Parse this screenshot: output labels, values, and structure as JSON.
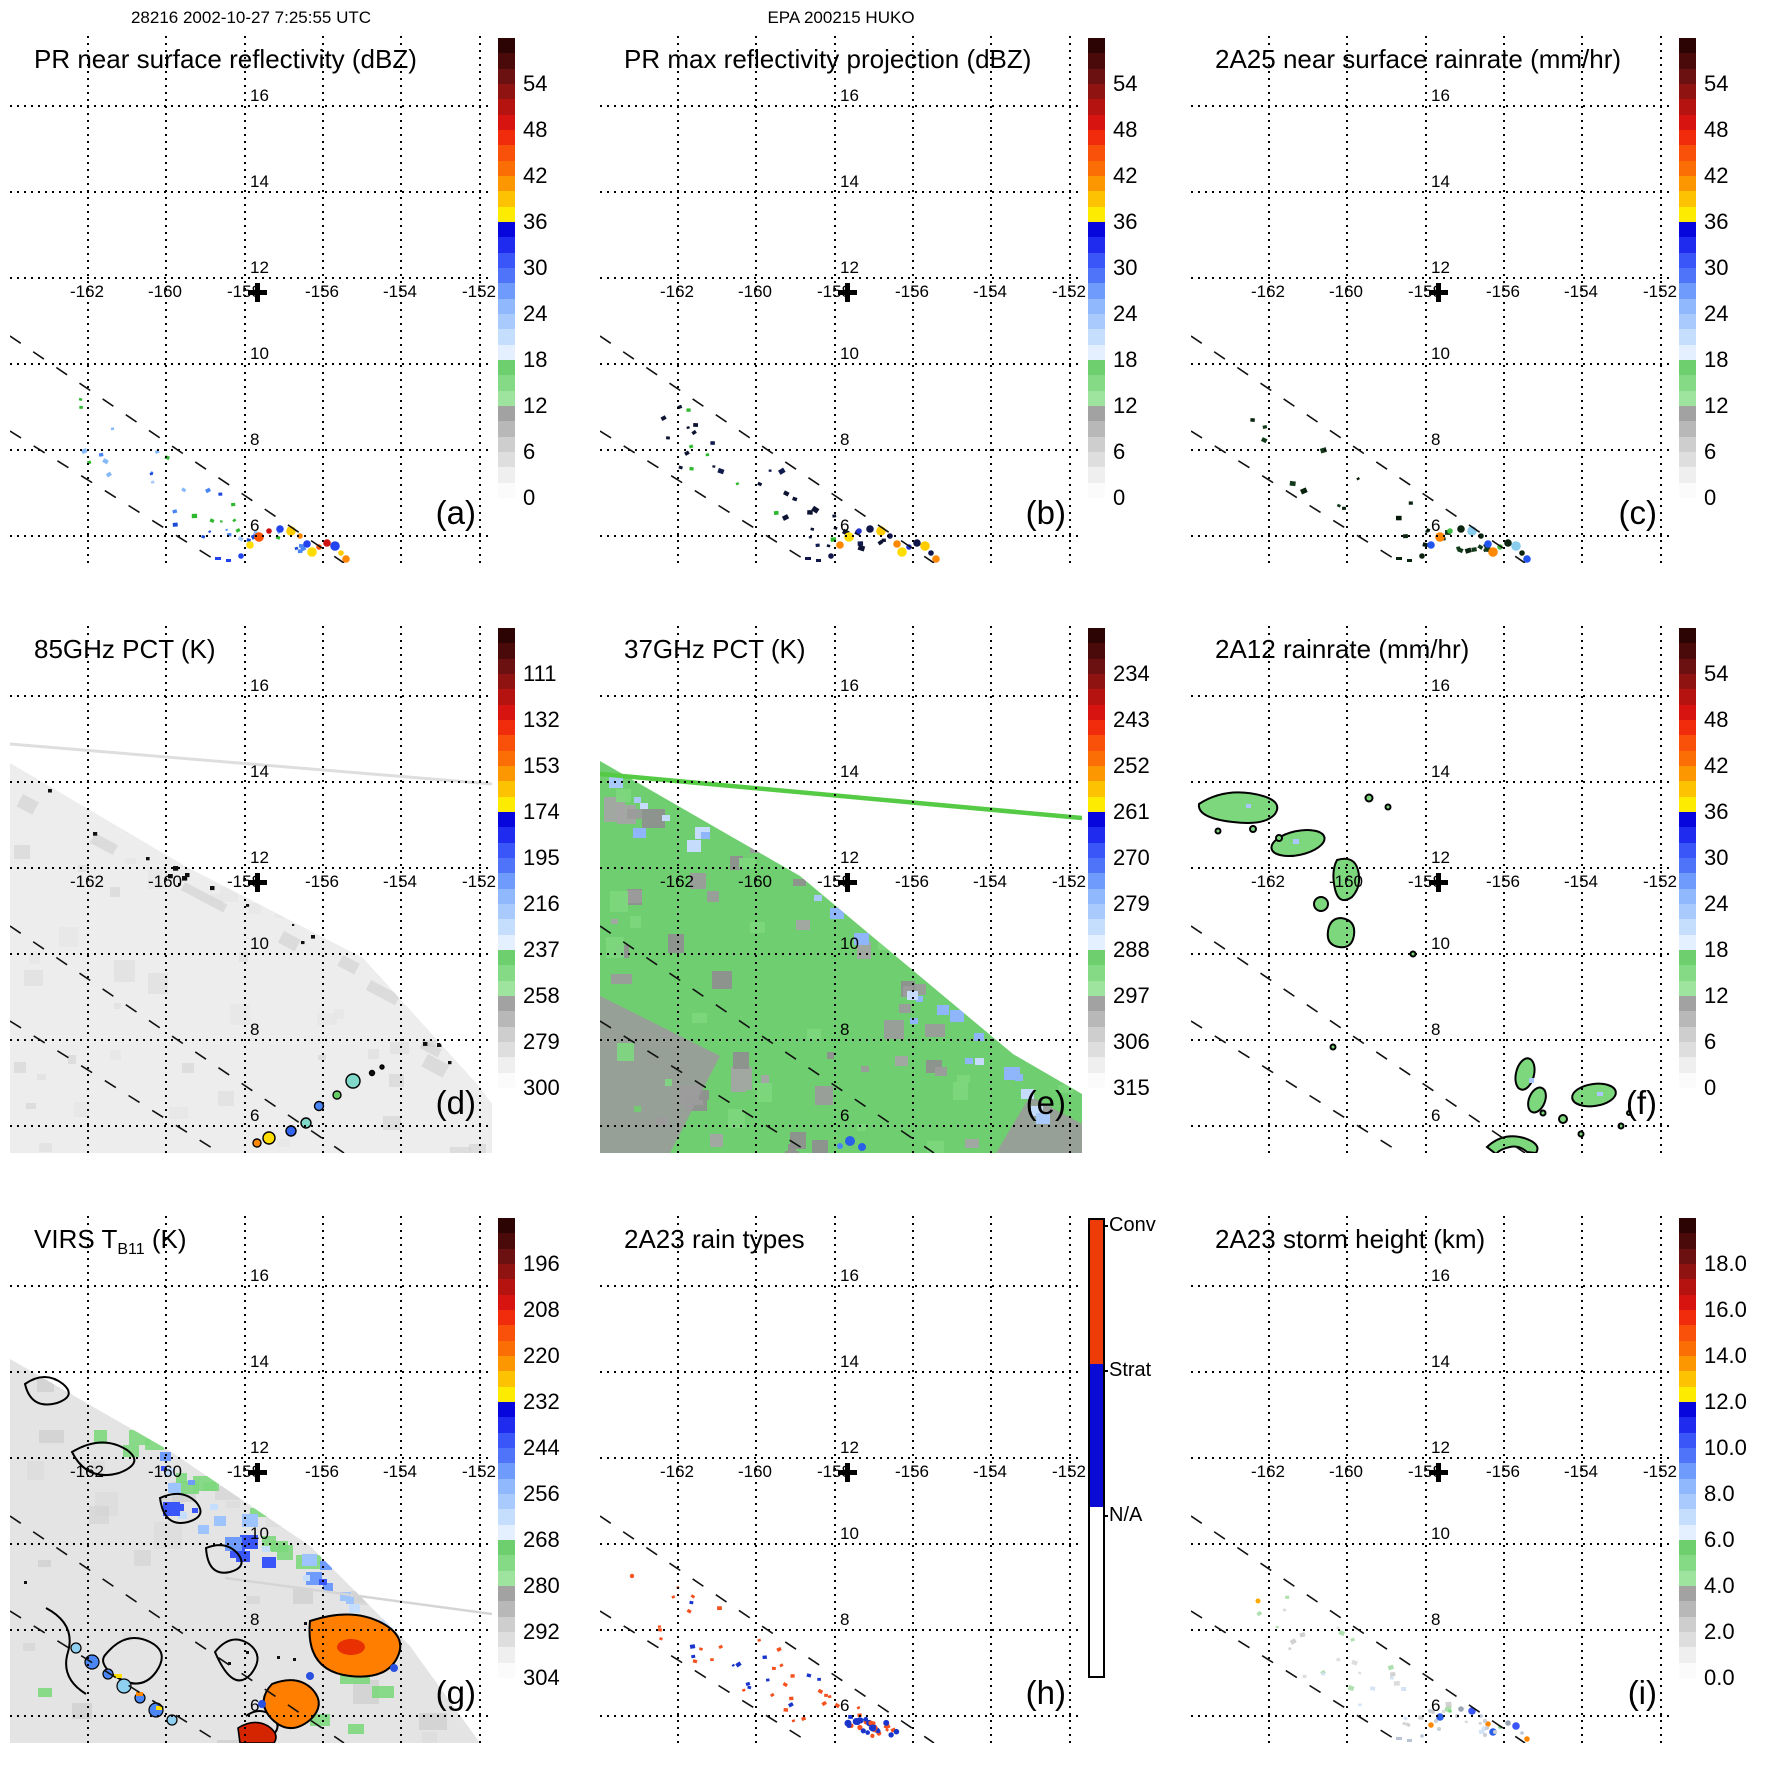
{
  "header": {
    "left": "28216 2002-10-27 7:25:55 UTC",
    "center": "EPA 200215 HUKO"
  },
  "map": {
    "lon_labels": [
      "-162",
      "-160",
      "-158",
      "-156",
      "-154",
      "-152"
    ],
    "lat_labels": [
      "16",
      "14",
      "12",
      "10",
      "8",
      "6"
    ]
  },
  "colorbar_scales": {
    "rainbow_segments": [
      [
        "#2d0404",
        "#4b0a0a",
        "#6b1111"
      ],
      [
        "#8f1310",
        "#b51310",
        "#d81410"
      ],
      [
        "#f02c0c",
        "#f9500a",
        "#fb6e06"
      ],
      [
        "#fc9702",
        "#fdc201",
        "#fdeb02"
      ],
      [
        "#0707dd",
        "#1f2bef",
        "#3a55f8"
      ],
      [
        "#4f74fa",
        "#6e9bfc",
        "#8fb8fd"
      ],
      [
        "#a8cafd",
        "#c6defe",
        "#e4f0ff"
      ],
      [
        "#6dcf6d",
        "#85da85",
        "#9ee49e"
      ],
      [
        "#a2a2a2",
        "#b8b8b8",
        "#cecece"
      ],
      [
        "#dedede",
        "#efefef",
        "#fbfbfb"
      ]
    ],
    "dbz": {
      "ticks": [
        "54",
        "48",
        "42",
        "36",
        "30",
        "24",
        "18",
        "12",
        "6",
        "0"
      ]
    },
    "pct85": {
      "ticks": [
        "111",
        "132",
        "153",
        "174",
        "195",
        "216",
        "237",
        "258",
        "279",
        "300"
      ]
    },
    "pct37": {
      "ticks": [
        "234",
        "243",
        "252",
        "261",
        "270",
        "279",
        "288",
        "297",
        "306",
        "315"
      ]
    },
    "virs": {
      "ticks": [
        "196",
        "208",
        "220",
        "232",
        "244",
        "256",
        "268",
        "280",
        "292",
        "304"
      ]
    },
    "storm": {
      "ticks": [
        "18.0",
        "16.0",
        "14.0",
        "12.0",
        "10.0",
        "8.0",
        "6.0",
        "4.0",
        "2.0",
        "0.0"
      ]
    },
    "raintype": {
      "labels": [
        "Conv",
        "Strat",
        "N/A"
      ],
      "colors": [
        "#ee3c09",
        "#0b0bd6",
        "#ffffff"
      ],
      "fractions": [
        0.315,
        0.315,
        0.37
      ]
    }
  },
  "panels": [
    {
      "id": "a",
      "corner": "(a)",
      "title": "PR near surface reflectivity (dBZ)",
      "scale": "dbz",
      "art": "specks",
      "specks": {
        "seed": 11,
        "n": 46,
        "colors": [
          "#4a86f5",
          "#86b9f8",
          "#2eb82e",
          "#1b49d8",
          "#a8cafd"
        ],
        "min": 2.2,
        "var": 3.2
      },
      "arc_colors": [
        "#2244ee",
        "#ffdd00",
        "#ff5500",
        "#cc1111",
        "#2244ee",
        "#ffcc00",
        "#ff8800"
      ]
    },
    {
      "id": "b",
      "corner": "(b)",
      "title": "PR max reflectivity projection (dBZ)",
      "scale": "dbz",
      "art": "specks",
      "specks": {
        "seed": 22,
        "n": 40,
        "colors": [
          "#0d1433",
          "#0d1433",
          "#101a4d",
          "#2eb82e"
        ],
        "min": 2.8,
        "var": 4.0
      },
      "arc_colors": [
        "#10154a",
        "#ff8800",
        "#ffdd00",
        "#2233cc",
        "#10154a",
        "#ffcc00"
      ]
    },
    {
      "id": "c",
      "corner": "(c)",
      "title": "2A25 near surface rainrate (mm/hr)",
      "scale": "dbz",
      "art": "specks",
      "specks": {
        "seed": 33,
        "n": 34,
        "colors": [
          "#0a2410",
          "#061a0a",
          "#123a1a"
        ],
        "min": 2.6,
        "var": 3.6
      },
      "arc_colors": [
        "#0a2410",
        "#2255ee",
        "#ff8800",
        "#44bb44",
        "#0a2410",
        "#88ccee"
      ]
    },
    {
      "id": "d",
      "corner": "(d)",
      "title": "85GHz PCT (K)",
      "scale": "pct85",
      "art": "swath85"
    },
    {
      "id": "e",
      "corner": "(e)",
      "title": "37GHz PCT (K)",
      "scale": "pct37",
      "art": "swath37"
    },
    {
      "id": "f",
      "corner": "(f)",
      "title": "2A12 rainrate (mm/hr)",
      "scale": "dbz",
      "art": "rainblobs"
    },
    {
      "id": "g",
      "corner": "(g)",
      "title_pre": "VIRS T",
      "title_sub": "B11",
      "title_post": " (K)",
      "scale": "virs",
      "art": "virs"
    },
    {
      "id": "h",
      "corner": "(h)",
      "title": "2A23 rain types",
      "scale": "raintype",
      "art": "raintype",
      "specks": {
        "seed": 77,
        "n": 58,
        "colors": [
          "#f4511e",
          "#f4511e",
          "#1a35cc"
        ],
        "min": 2.6,
        "var": 2.6
      }
    },
    {
      "id": "i",
      "corner": "(i)",
      "title": "2A23 storm height (km)",
      "scale": "storm",
      "art": "storm",
      "specks": {
        "seed": 99,
        "n": 44,
        "colors": [
          "#d9d9d9",
          "#cccccc",
          "#a6dca6",
          "#cfe0f5"
        ],
        "min": 2.6,
        "var": 3.4,
        "op": 0.9
      },
      "arc_colors": [
        "#b8c4d4",
        "#ff8800",
        "#2b5fe8",
        "#7fd87f",
        "#9aa6b4",
        "#3a55f8"
      ]
    }
  ],
  "chart_data": {
    "type": "heatmap",
    "subtype": "satellite-overpass-map-panels",
    "grid": "3x3",
    "orbit_header": "28216 2002-10-27 7:25:55 UTC",
    "event_header": "EPA 200215 HUKO",
    "lon_ticks": [
      -162,
      -160,
      -158,
      -156,
      -154,
      -152
    ],
    "lat_ticks": [
      16,
      14,
      12,
      10,
      8,
      6
    ],
    "center_marker_lonlat": [
      -157.8,
      11.8
    ],
    "annotations": [
      "two dashed diagonal lines mark PR swath edges in each panel"
    ],
    "panels": [
      {
        "id": "(a)",
        "title": "PR near surface reflectivity (dBZ)",
        "units": "dBZ",
        "colorbar_ticks": [
          54,
          48,
          42,
          36,
          30,
          24,
          18,
          12,
          6,
          0
        ],
        "features": "sparse weak echoes 18-30 dBZ inside PR swath near 6-8N 158-161W; arc of 30-50 dBZ echoes near 5.5N 157.5W"
      },
      {
        "id": "(b)",
        "title": "PR max reflectivity projection (dBZ)",
        "units": "dBZ",
        "colorbar_ticks": [
          54,
          48,
          42,
          36,
          30,
          24,
          18,
          12,
          6,
          0
        ],
        "features": "same echo field as dark 30+ dBZ specks; orange/yellow arc feature near 5.5N 157.5W"
      },
      {
        "id": "(c)",
        "title": "2A25 near surface rainrate (mm/hr)",
        "units": "mm/hr",
        "colorbar_ticks": [
          54,
          48,
          42,
          36,
          30,
          24,
          18,
          12,
          6,
          0
        ],
        "features": "dark rain specks matching PR echoes; rain arc near 5.5N 157.5W"
      },
      {
        "id": "(d)",
        "title": "85GHz PCT (K)",
        "units": "K",
        "colorbar_ticks": [
          111,
          132,
          153,
          174,
          195,
          216,
          237,
          258,
          279,
          300
        ],
        "features": "TMI swath lower-left triangle mostly 280-300 K; cold specks along swath edge; 216-260 K depressions near 5.5-7N"
      },
      {
        "id": "(e)",
        "title": "37GHz PCT (K)",
        "units": "K",
        "colorbar_ticks": [
          234,
          243,
          252,
          261,
          270,
          279,
          288,
          297,
          306,
          315
        ],
        "features": "swath mostly 285-295 K green with 297-306 K gray mottling and 270-285 K blue patches; bright green swath-edge line near 14N"
      },
      {
        "id": "(f)",
        "title": "2A12 rainrate (mm/hr)",
        "units": "mm/hr",
        "colorbar_ticks": [
          54,
          48,
          42,
          36,
          30,
          24,
          18,
          12,
          6,
          0
        ],
        "features": "light rain 0-6 mm/hr green blobs outlined black near 12.5-13N 160-163W and 5.5-7.5N 154.5-156.5W"
      },
      {
        "id": "(g)",
        "title": "VIRS TB11 (K)",
        "units": "K",
        "colorbar_ticks": [
          196,
          208,
          220,
          232,
          244,
          256,
          268,
          280,
          292,
          304
        ],
        "features": "warm 280-300 K gray scene; cold cloud clusters 208-232 K orange near 6-7N 155-157W and SW corner; 244-268 K blue/green bands along swath edge"
      },
      {
        "id": "(h)",
        "title": "2A23 rain types",
        "units": "category",
        "categories": [
          "Conv",
          "Strat",
          "N/A"
        ],
        "features": "scattered convective orange and stratiform blue pixels inside PR swath 5.5-8N 157-161W; mixed conv/strat arc near 5.5N 157.5W"
      },
      {
        "id": "(i)",
        "title": "2A23 storm height (km)",
        "units": "km",
        "colorbar_ticks": [
          18,
          16,
          14,
          12,
          10,
          8,
          6,
          4,
          2,
          0
        ],
        "features": "storm heights mostly 2-6 km faint gray/green in PR swath; 8-12 km blue and ~14 km orange pixels in arc near 5.5N 157.5W"
      }
    ]
  }
}
